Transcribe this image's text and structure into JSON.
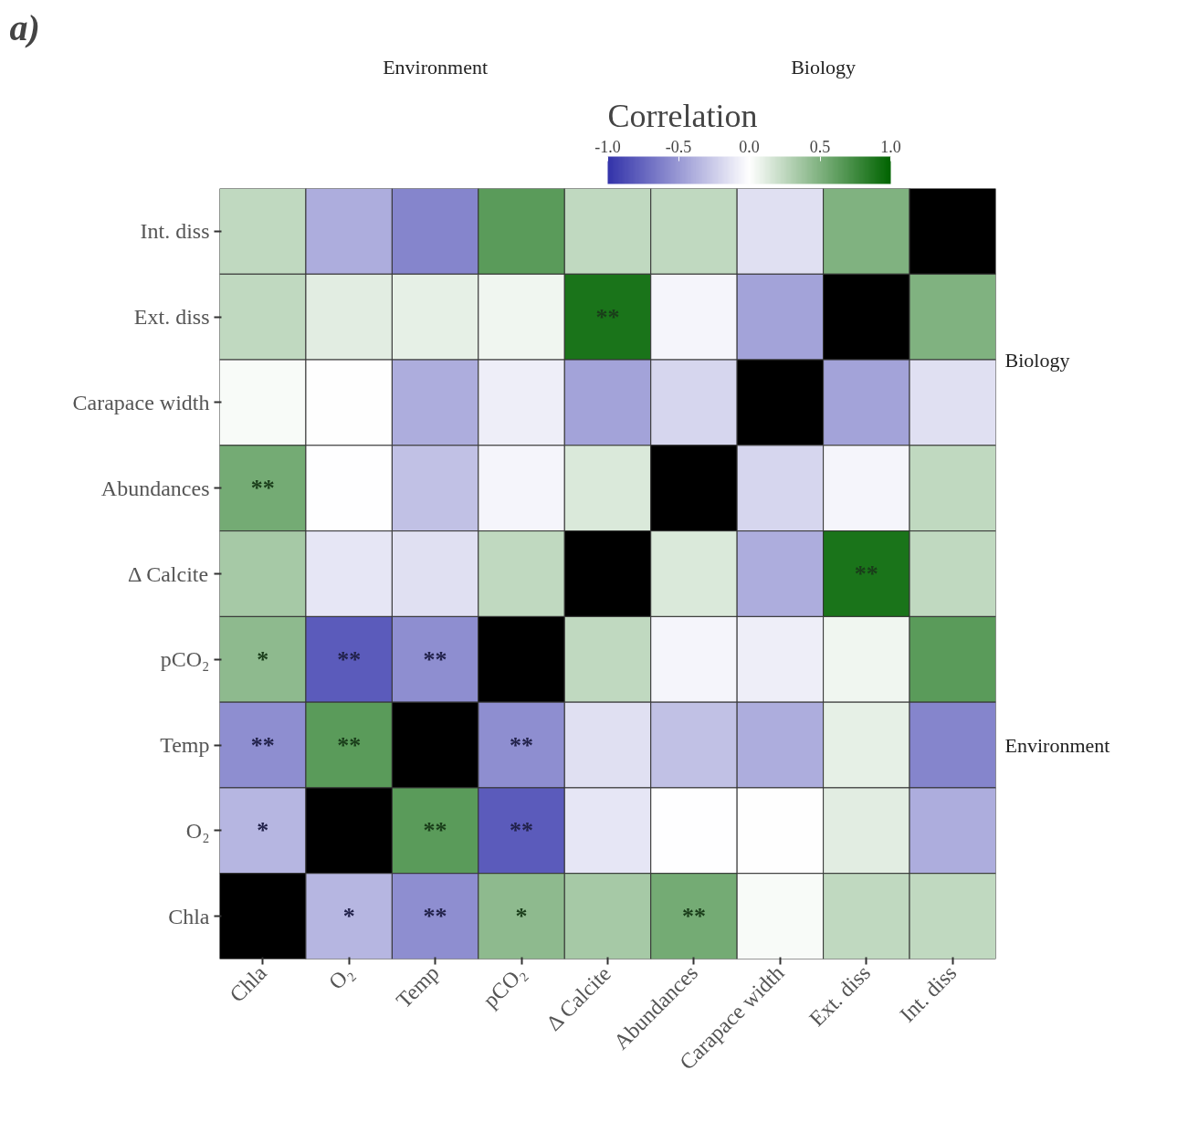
{
  "chart_data": {
    "type": "heatmap",
    "clabel": "Correlation",
    "categories": [
      "Chla",
      "O₂",
      "Temp",
      "pCO₂",
      "Δ Calcite",
      "Abundances",
      "Carapace width",
      "Ext. diss",
      "Int. diss"
    ],
    "y_categories": [
      "Int. diss",
      "Ext. diss",
      "Carapace width",
      "Abundances",
      "Δ Calcite",
      "pCO₂",
      "Temp",
      "O₂",
      "Chla"
    ],
    "cells": [
      [
        0.25,
        -0.4,
        -0.6,
        0.65,
        0.25,
        0.25,
        -0.15,
        0.5,
        null
      ],
      [
        0.25,
        0.12,
        0.1,
        0.06,
        0.9,
        -0.05,
        -0.45,
        null,
        0.5
      ],
      [
        0.03,
        0.01,
        -0.4,
        -0.08,
        -0.45,
        -0.2,
        null,
        -0.45,
        -0.15
      ],
      [
        0.55,
        0.0,
        -0.3,
        -0.05,
        0.15,
        null,
        -0.2,
        -0.05,
        0.25
      ],
      [
        0.35,
        -0.12,
        -0.15,
        0.25,
        null,
        0.15,
        -0.4,
        0.9,
        0.25
      ],
      [
        0.45,
        -0.8,
        -0.55,
        null,
        0.25,
        -0.05,
        -0.08,
        0.06,
        0.65
      ],
      [
        -0.55,
        0.65,
        null,
        -0.55,
        -0.15,
        -0.3,
        -0.4,
        0.1,
        -0.6
      ],
      [
        -0.35,
        null,
        0.65,
        -0.8,
        -0.12,
        0.0,
        0.01,
        0.12,
        -0.4
      ],
      [
        null,
        -0.35,
        -0.55,
        0.45,
        0.35,
        0.55,
        0.03,
        0.25,
        0.25
      ]
    ],
    "cell_labels": [
      [
        null,
        null,
        null,
        null,
        null,
        null,
        null,
        null,
        null
      ],
      [
        null,
        null,
        null,
        null,
        "**",
        null,
        null,
        null,
        null
      ],
      [
        null,
        null,
        null,
        null,
        null,
        null,
        null,
        null,
        null
      ],
      [
        "**",
        null,
        null,
        null,
        null,
        null,
        null,
        null,
        null
      ],
      [
        null,
        null,
        null,
        null,
        null,
        null,
        null,
        "**",
        null
      ],
      [
        "*",
        "**",
        "**",
        null,
        null,
        null,
        null,
        null,
        null
      ],
      [
        "**",
        "**",
        null,
        "**",
        null,
        null,
        null,
        null,
        null
      ],
      [
        "*",
        null,
        "**",
        "**",
        null,
        null,
        null,
        null,
        null
      ],
      [
        null,
        "*",
        "**",
        "*",
        null,
        "**",
        null,
        null,
        null
      ]
    ],
    "clim": [
      -1,
      1
    ],
    "cticks": [
      {
        "value": -1,
        "label": "-1.0"
      },
      {
        "value": -0.5,
        "label": "-0.5"
      },
      {
        "value": 0,
        "label": "0.0"
      },
      {
        "value": 0.5,
        "label": "0.5"
      },
      {
        "value": 1,
        "label": "1.0"
      }
    ],
    "annotations": [
      "a)",
      "Environment",
      "Biology",
      "Biology",
      "Environment"
    ]
  }
}
